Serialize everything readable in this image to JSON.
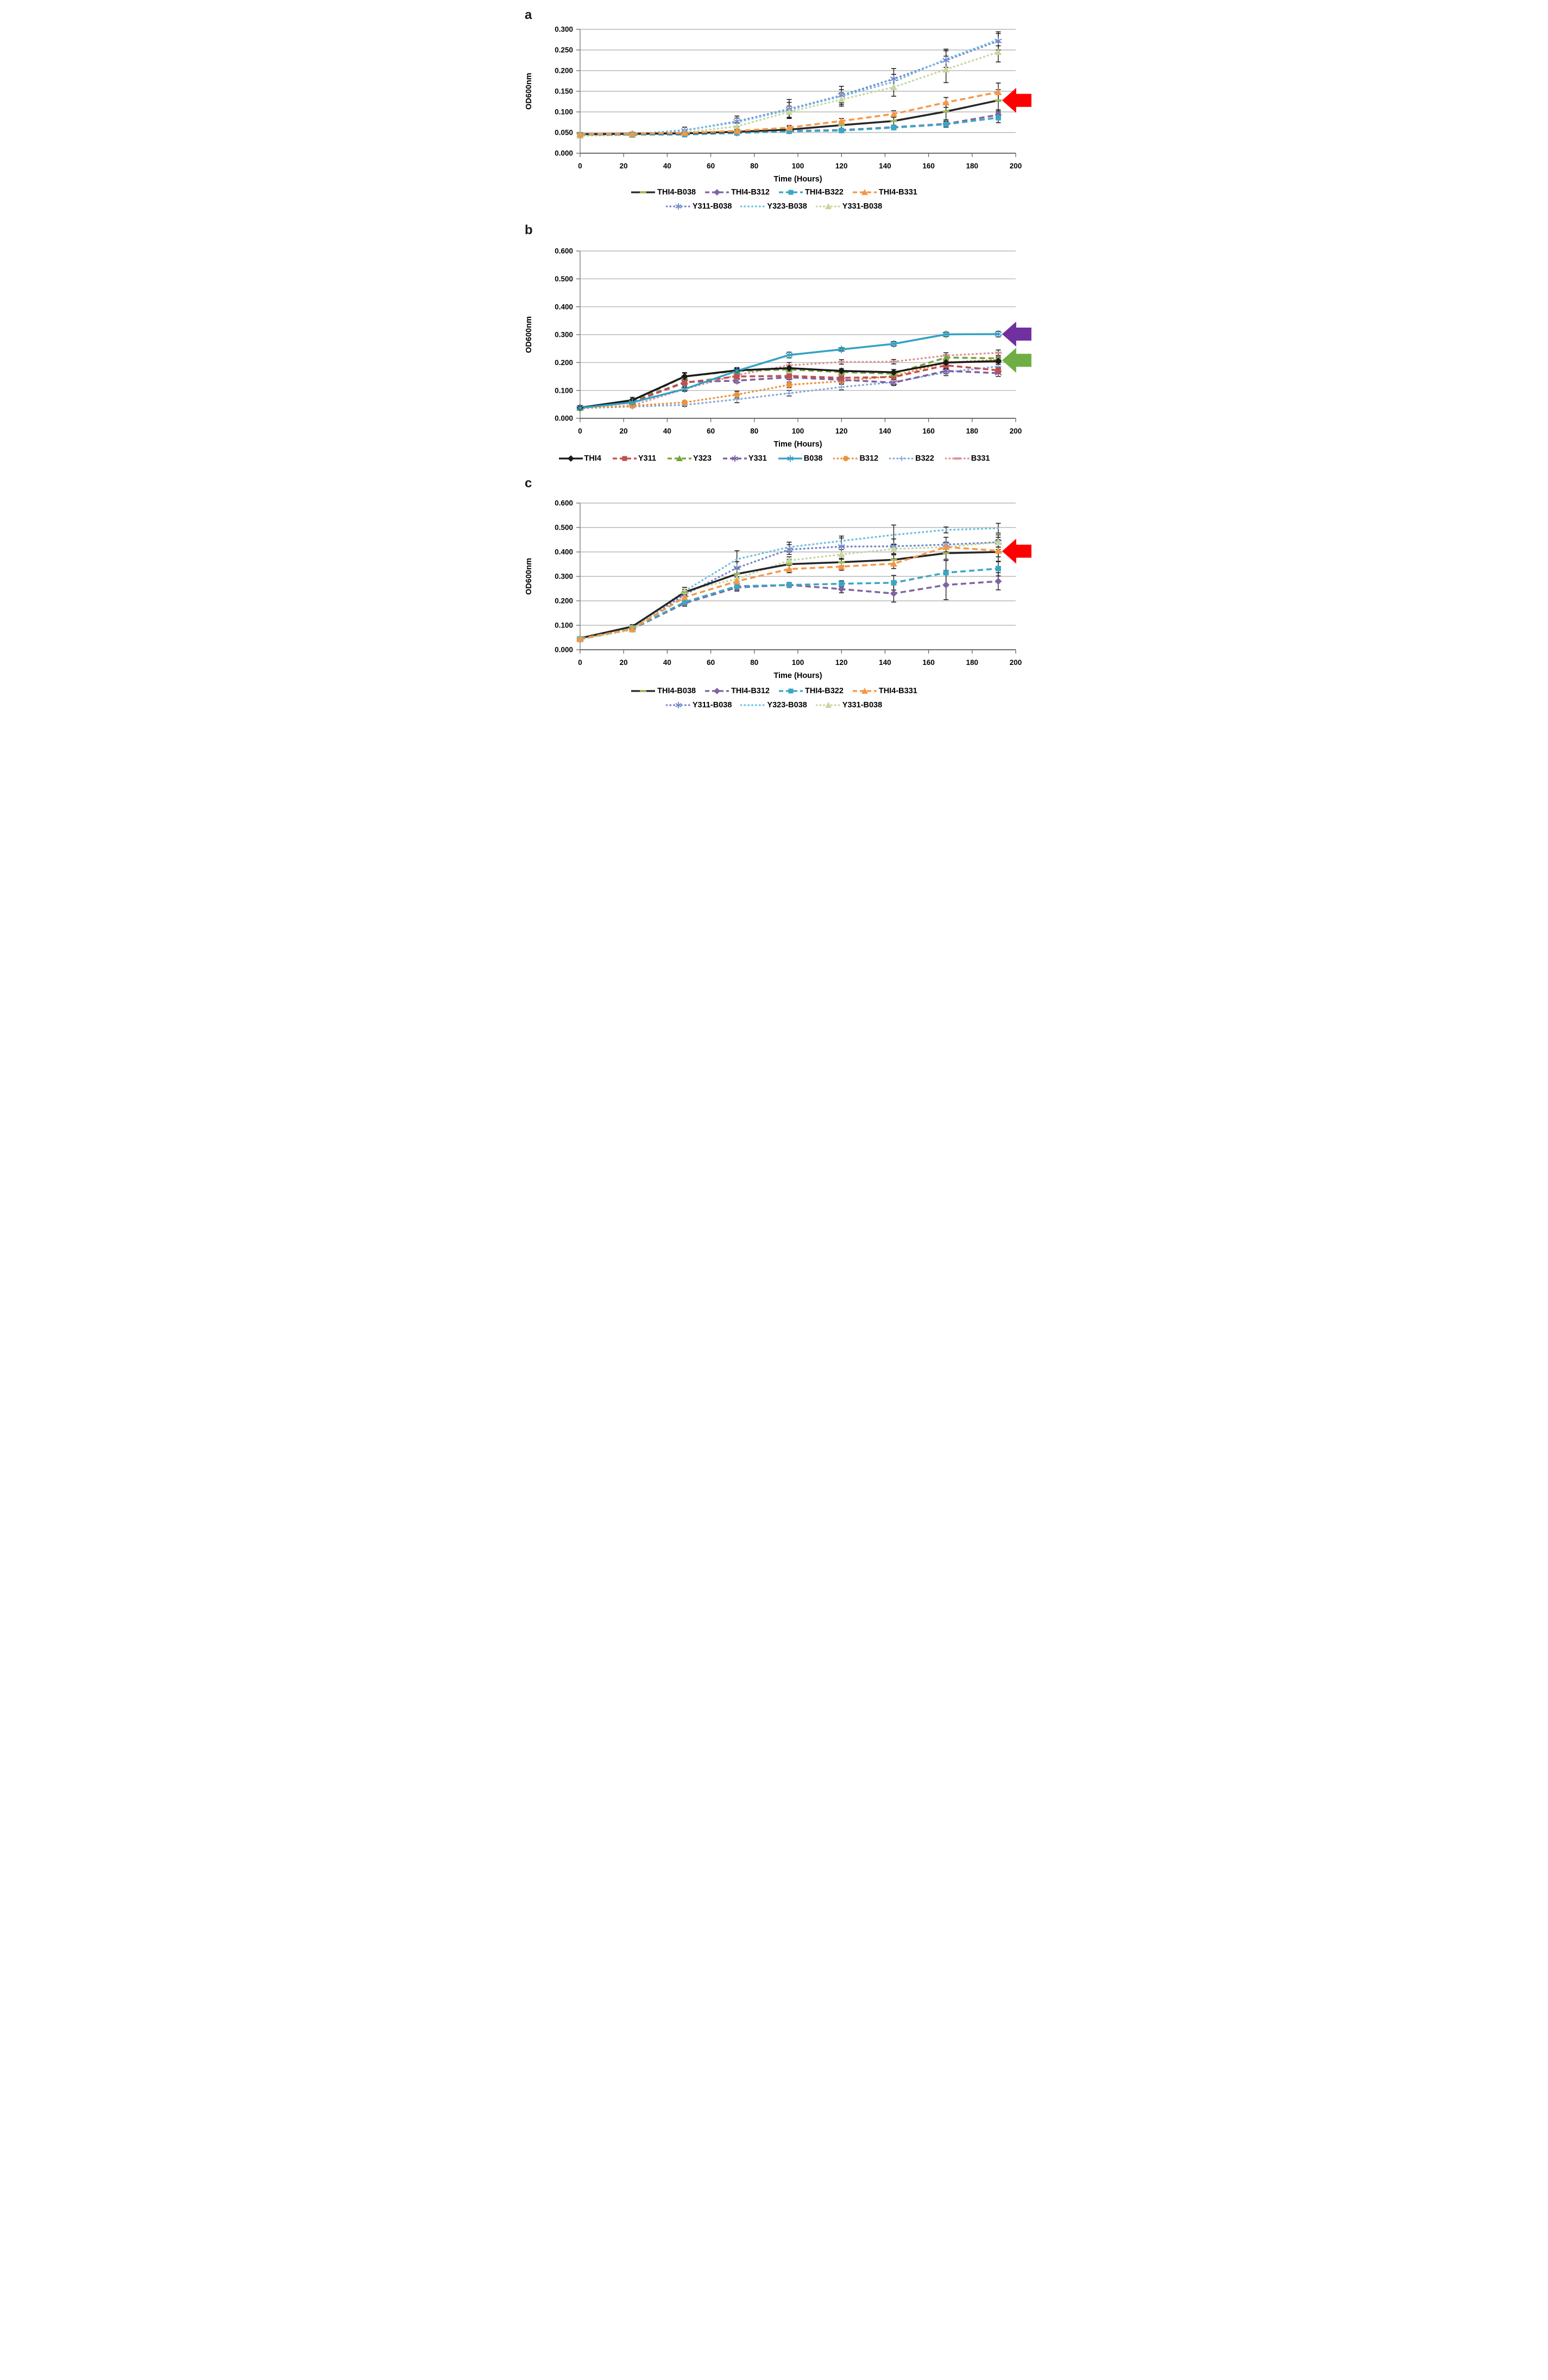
{
  "figure_background": "#ffffff",
  "chart_data": [
    {
      "type": "line",
      "panel_label": "a",
      "title": "",
      "xlabel": "Time (Hours)",
      "ylabel": "OD600nm",
      "xlim": [
        0,
        200
      ],
      "ylim": [
        0,
        0.3
      ],
      "xticks": [
        0,
        20,
        40,
        60,
        80,
        100,
        120,
        140,
        160,
        180,
        200
      ],
      "ytick_labels": [
        "0.000",
        "0.050",
        "0.100",
        "0.150",
        "0.200",
        "0.250",
        "0.300"
      ],
      "grid": true,
      "legend_position": "bottom",
      "x": [
        0,
        24,
        48,
        72,
        96,
        120,
        144,
        168,
        192
      ],
      "series": [
        {
          "name": "Y311-B038",
          "color": "#7388cc",
          "line": "dot",
          "marker": "asterisk",
          "values": [
            0.044,
            0.046,
            0.055,
            0.077,
            0.107,
            0.14,
            0.18,
            0.225,
            0.272
          ],
          "err": [
            0.004,
            0.004,
            0.008,
            0.013,
            0.023,
            0.022,
            0.025,
            0.027,
            0.022
          ]
        },
        {
          "name": "Y323-B038",
          "color": "#6fbfe4",
          "line": "dot",
          "marker": "none",
          "values": [
            0.044,
            0.046,
            0.056,
            0.075,
            0.105,
            0.138,
            0.173,
            0.228,
            0.275
          ],
          "err": [
            0.004,
            0.004,
            0.007,
            0.01,
            0.018,
            0.016,
            0.018,
            0.02,
            0.015
          ]
        },
        {
          "name": "Y331-B038",
          "color": "#c6d6a0",
          "line": "dot",
          "marker": "triangle",
          "values": [
            0.042,
            0.044,
            0.05,
            0.065,
            0.1,
            0.13,
            0.16,
            0.203,
            0.245
          ],
          "err": [
            0.004,
            0.004,
            0.006,
            0.008,
            0.014,
            0.016,
            0.022,
            0.032,
            0.024
          ]
        },
        {
          "name": "THI4-B312",
          "color": "#8064a2",
          "line": "dash",
          "marker": "diamond",
          "values": [
            0.045,
            0.046,
            0.046,
            0.049,
            0.054,
            0.056,
            0.063,
            0.071,
            0.093
          ],
          "err": [
            0.002,
            0.002,
            0.003,
            0.003,
            0.004,
            0.004,
            0.005,
            0.007,
            0.012
          ]
        },
        {
          "name": "THI4-B322",
          "color": "#3ba6c4",
          "line": "dash",
          "marker": "square",
          "values": [
            0.045,
            0.045,
            0.045,
            0.049,
            0.053,
            0.055,
            0.062,
            0.07,
            0.086
          ],
          "err": [
            0.002,
            0.002,
            0.003,
            0.003,
            0.004,
            0.004,
            0.005,
            0.007,
            0.012
          ]
        },
        {
          "name": "THI4-B038",
          "color": "#262626",
          "line": "solid",
          "marker": "dash",
          "marker_color": "#9bbb59",
          "values": [
            0.046,
            0.047,
            0.048,
            0.052,
            0.057,
            0.068,
            0.078,
            0.101,
            0.128
          ],
          "err": [
            0.003,
            0.004,
            0.005,
            0.005,
            0.007,
            0.009,
            0.012,
            0.02,
            0.026
          ]
        },
        {
          "name": "THI4-B331",
          "color": "#f79646",
          "line": "dash",
          "marker": "triangle",
          "values": [
            0.046,
            0.047,
            0.049,
            0.054,
            0.062,
            0.078,
            0.095,
            0.123,
            0.148
          ],
          "err": [
            0.002,
            0.003,
            0.004,
            0.004,
            0.005,
            0.006,
            0.008,
            0.012,
            0.022
          ]
        }
      ],
      "legend_rows": [
        [
          "THI4-B038",
          "THI4-B312",
          "THI4-B322",
          "THI4-B331"
        ],
        [
          "Y311-B038",
          "Y323-B038",
          "Y331-B038"
        ]
      ],
      "annotations": [
        {
          "name": "red-arrow",
          "shape": "block-arrow-left",
          "color": "#fe0000",
          "x": 192,
          "y": 0.128
        }
      ]
    },
    {
      "type": "line",
      "panel_label": "b",
      "title": "",
      "xlabel": "Time (Hours)",
      "ylabel": "OD600nm",
      "xlim": [
        0,
        200
      ],
      "ylim": [
        0,
        0.6
      ],
      "xticks": [
        0,
        20,
        40,
        60,
        80,
        100,
        120,
        140,
        160,
        180,
        200
      ],
      "ytick_labels": [
        "0.000",
        "0.100",
        "0.200",
        "0.300",
        "0.400",
        "0.500",
        "0.600"
      ],
      "grid": true,
      "legend_position": "bottom",
      "x": [
        0,
        24,
        48,
        72,
        96,
        120,
        144,
        168,
        192
      ],
      "series": [
        {
          "name": "B322",
          "color": "#8aa8dc",
          "line": "dot",
          "marker": "plus",
          "values": [
            0.036,
            0.042,
            0.048,
            0.068,
            0.09,
            0.112,
            0.13,
            0.165,
            0.186
          ],
          "err": [
            0.003,
            0.004,
            0.005,
            0.012,
            0.01,
            0.01,
            0.01,
            0.012,
            0.012
          ]
        },
        {
          "name": "B331",
          "color": "#db9496",
          "line": "dot",
          "marker": "dash",
          "values": [
            0.036,
            0.046,
            0.105,
            0.155,
            0.19,
            0.202,
            0.203,
            0.225,
            0.235
          ],
          "err": [
            0.003,
            0.004,
            0.008,
            0.01,
            0.01,
            0.008,
            0.008,
            0.01,
            0.01
          ]
        },
        {
          "name": "B312",
          "color": "#ef923d",
          "line": "dot",
          "marker": "circle",
          "values": [
            0.036,
            0.045,
            0.057,
            0.085,
            0.12,
            0.133,
            0.152,
            0.2,
            0.21
          ],
          "err": [
            0.003,
            0.004,
            0.005,
            0.012,
            0.01,
            0.008,
            0.008,
            0.012,
            0.01
          ]
        },
        {
          "name": "Y331",
          "color": "#7e5fa5",
          "line": "dash",
          "marker": "asterisk",
          "values": [
            0.038,
            0.06,
            0.13,
            0.135,
            0.147,
            0.138,
            0.128,
            0.17,
            0.162
          ],
          "err": [
            0.003,
            0.006,
            0.01,
            0.008,
            0.008,
            0.008,
            0.01,
            0.01,
            0.012
          ]
        },
        {
          "name": "Y311",
          "color": "#c0504d",
          "line": "dash",
          "marker": "square",
          "values": [
            0.038,
            0.058,
            0.128,
            0.15,
            0.152,
            0.145,
            0.148,
            0.19,
            0.172
          ],
          "err": [
            0.003,
            0.006,
            0.01,
            0.008,
            0.008,
            0.008,
            0.008,
            0.01,
            0.01
          ]
        },
        {
          "name": "Y323",
          "color": "#76a23e",
          "line": "dash",
          "marker": "triangle",
          "values": [
            0.038,
            0.06,
            0.15,
            0.17,
            0.175,
            0.166,
            0.16,
            0.218,
            0.215
          ],
          "err": [
            0.003,
            0.006,
            0.014,
            0.01,
            0.008,
            0.008,
            0.008,
            0.01,
            0.01
          ]
        },
        {
          "name": "THI4",
          "color": "#1a1a1a",
          "line": "solid",
          "marker": "diamond",
          "values": [
            0.038,
            0.065,
            0.15,
            0.172,
            0.18,
            0.17,
            0.165,
            0.2,
            0.205
          ],
          "err": [
            0.003,
            0.01,
            0.012,
            0.01,
            0.008,
            0.008,
            0.01,
            0.012,
            0.012
          ]
        },
        {
          "name": "B038",
          "color": "#35a2c4",
          "line": "solid",
          "marker": "asterisk",
          "values": [
            0.037,
            0.057,
            0.105,
            0.17,
            0.227,
            0.247,
            0.267,
            0.301,
            0.302
          ],
          "err": [
            0.003,
            0.004,
            0.006,
            0.008,
            0.01,
            0.006,
            0.008,
            0.008,
            0.01
          ]
        }
      ],
      "legend_rows": [
        [
          "THI4",
          "Y311",
          "Y323",
          "Y331",
          "B038",
          "B312",
          "B322",
          "B331"
        ]
      ],
      "annotations": [
        {
          "name": "purple-arrow",
          "shape": "block-arrow-left",
          "color": "#7030a0",
          "x": 192,
          "y": 0.302
        },
        {
          "name": "green-arrow",
          "shape": "block-arrow-left",
          "color": "#6fae44",
          "x": 192,
          "y": 0.208
        }
      ]
    },
    {
      "type": "line",
      "panel_label": "c",
      "title": "",
      "xlabel": "Time (Hours)",
      "ylabel": "OD600nm",
      "xlim": [
        0,
        200
      ],
      "ylim": [
        0,
        0.6
      ],
      "xticks": [
        0,
        20,
        40,
        60,
        80,
        100,
        120,
        140,
        160,
        180,
        200
      ],
      "ytick_labels": [
        "0.000",
        "0.100",
        "0.200",
        "0.300",
        "0.400",
        "0.500",
        "0.600"
      ],
      "grid": true,
      "legend_position": "bottom",
      "x": [
        0,
        24,
        48,
        72,
        96,
        120,
        144,
        168,
        192
      ],
      "series": [
        {
          "name": "Y311-B038",
          "color": "#7388cc",
          "line": "dot",
          "marker": "asterisk",
          "values": [
            0.045,
            0.088,
            0.225,
            0.335,
            0.41,
            0.422,
            0.423,
            0.43,
            0.44
          ],
          "err": [
            0.004,
            0.008,
            0.015,
            0.025,
            0.02,
            0.035,
            0.03,
            0.03,
            0.03
          ]
        },
        {
          "name": "Y323-B038",
          "color": "#6fbfe4",
          "line": "dot",
          "marker": "none",
          "values": [
            0.045,
            0.088,
            0.24,
            0.37,
            0.42,
            0.445,
            0.47,
            0.49,
            0.497
          ],
          "err": [
            0.004,
            0.008,
            0.015,
            0.035,
            0.02,
            0.02,
            0.04,
            0.012,
            0.02
          ]
        },
        {
          "name": "Y331-B038",
          "color": "#c6d6a0",
          "line": "dot",
          "marker": "triangle",
          "values": [
            0.042,
            0.082,
            0.24,
            0.29,
            0.365,
            0.39,
            0.412,
            0.42,
            0.44
          ],
          "err": [
            0.004,
            0.008,
            0.015,
            0.02,
            0.015,
            0.02,
            0.02,
            0.02,
            0.02
          ]
        },
        {
          "name": "THI4-B312",
          "color": "#8064a2",
          "line": "dash",
          "marker": "diamond",
          "values": [
            0.044,
            0.085,
            0.19,
            0.255,
            0.265,
            0.248,
            0.23,
            0.265,
            0.28
          ],
          "err": [
            0.004,
            0.006,
            0.012,
            0.015,
            0.01,
            0.015,
            0.035,
            0.06,
            0.035
          ]
        },
        {
          "name": "THI4-B322",
          "color": "#3ba6c4",
          "line": "dash",
          "marker": "square",
          "values": [
            0.044,
            0.085,
            0.195,
            0.26,
            0.265,
            0.27,
            0.274,
            0.315,
            0.332
          ],
          "err": [
            0.004,
            0.006,
            0.012,
            0.015,
            0.01,
            0.012,
            0.03,
            0.05,
            0.03
          ]
        },
        {
          "name": "THI4-B038",
          "color": "#262626",
          "line": "solid",
          "marker": "dash",
          "marker_color": "#9bbb59",
          "values": [
            0.047,
            0.095,
            0.235,
            0.31,
            0.35,
            0.358,
            0.368,
            0.395,
            0.4
          ],
          "err": [
            0.005,
            0.008,
            0.012,
            0.02,
            0.02,
            0.015,
            0.02,
            0.025,
            0.02
          ]
        },
        {
          "name": "THI4-B331",
          "color": "#f79646",
          "line": "dash",
          "marker": "triangle",
          "values": [
            0.045,
            0.085,
            0.215,
            0.28,
            0.33,
            0.34,
            0.352,
            0.42,
            0.405
          ],
          "err": [
            0.004,
            0.006,
            0.012,
            0.018,
            0.015,
            0.015,
            0.02,
            0.02,
            0.045
          ]
        }
      ],
      "legend_rows": [
        [
          "THI4-B038",
          "THI4-B312",
          "THI4-B322",
          "THI4-B331"
        ],
        [
          "Y311-B038",
          "Y323-B038",
          "Y331-B038"
        ]
      ],
      "annotations": [
        {
          "name": "red-arrow",
          "shape": "block-arrow-left",
          "color": "#fe0000",
          "x": 192,
          "y": 0.403
        }
      ]
    }
  ]
}
